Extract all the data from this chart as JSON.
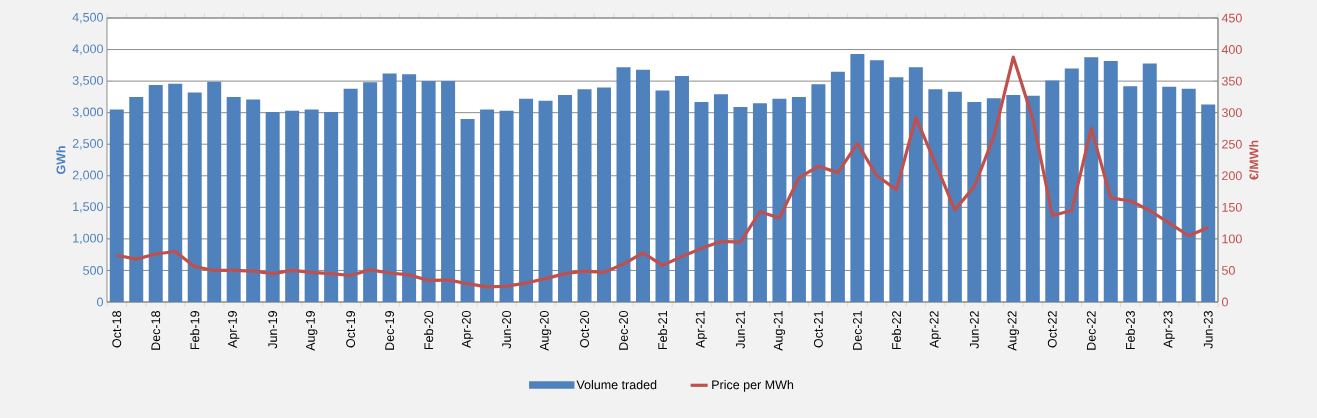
{
  "chart_data": {
    "type": "bar",
    "categories": [
      "Oct-18",
      null,
      "Dec-18",
      null,
      "Feb-19",
      null,
      "Apr-19",
      null,
      "Jun-19",
      null,
      "Aug-19",
      null,
      "Oct-19",
      null,
      "Dec-19",
      null,
      "Feb-20",
      null,
      "Apr-20",
      null,
      "Jun-20",
      null,
      "Aug-20",
      null,
      "Oct-20",
      null,
      "Dec-20",
      null,
      "Feb-21",
      null,
      "Apr-21",
      null,
      "Jun-21",
      null,
      "Aug-21",
      null,
      "Oct-21",
      null,
      "Dec-21",
      null,
      "Feb-22",
      null,
      "Apr-22",
      null,
      "Jun-22",
      null,
      "Aug-22",
      null,
      "Oct-22",
      null,
      "Dec-22",
      null,
      "Feb-23",
      null,
      "Apr-23",
      null,
      "Jun-23"
    ],
    "series": [
      {
        "name": "Volume traded",
        "type": "bar",
        "color": "#4f81bd",
        "values": [
          3050,
          3250,
          3440,
          3460,
          3320,
          3490,
          3250,
          3210,
          3010,
          3030,
          3050,
          3010,
          3380,
          3480,
          3620,
          3610,
          3500,
          3500,
          2900,
          3050,
          3030,
          3220,
          3190,
          3280,
          3370,
          3400,
          3720,
          3680,
          3350,
          3580,
          3170,
          3290,
          3090,
          3150,
          3220,
          3250,
          3450,
          3650,
          3930,
          3830,
          3560,
          3720,
          3370,
          3330,
          3170,
          3230,
          3280,
          3270,
          3510,
          3700,
          3880,
          3820,
          3420,
          3780,
          3410,
          3380,
          3130
        ]
      },
      {
        "name": "Price per MWh",
        "type": "line",
        "axis": "y2",
        "color": "#c0504d",
        "values": [
          74,
          68,
          76,
          80,
          56,
          50,
          50,
          49,
          45,
          50,
          47,
          45,
          42,
          51,
          46,
          43,
          34,
          35,
          29,
          24,
          25,
          30,
          37,
          45,
          49,
          47,
          60,
          78,
          58,
          72,
          85,
          96,
          95,
          143,
          133,
          197,
          215,
          205,
          251,
          200,
          178,
          292,
          220,
          146,
          183,
          262,
          388,
          290,
          137,
          145,
          275,
          165,
          160,
          145,
          125,
          105,
          118
        ]
      }
    ],
    "ylabel": "GWh",
    "y2label": "€/MWh",
    "ylim": [
      0,
      4500
    ],
    "yticks": [
      0,
      500,
      {
        "value": 1000,
        "label": "1,000"
      },
      {
        "value": 1500,
        "label": "1,500"
      },
      {
        "value": 2000,
        "label": "2,000"
      },
      {
        "value": 2500,
        "label": "2,500"
      },
      {
        "value": 3000,
        "label": "3,000"
      },
      {
        "value": 3500,
        "label": "3,500"
      },
      {
        "value": 4000,
        "label": "4,000"
      },
      {
        "value": 4500,
        "label": "4,500"
      }
    ],
    "y2lim": [
      0,
      450
    ],
    "y2ticks": [
      0,
      50,
      100,
      150,
      200,
      250,
      300,
      350,
      400,
      450
    ],
    "grid": "y",
    "legend": "bottom",
    "marker": "none"
  }
}
